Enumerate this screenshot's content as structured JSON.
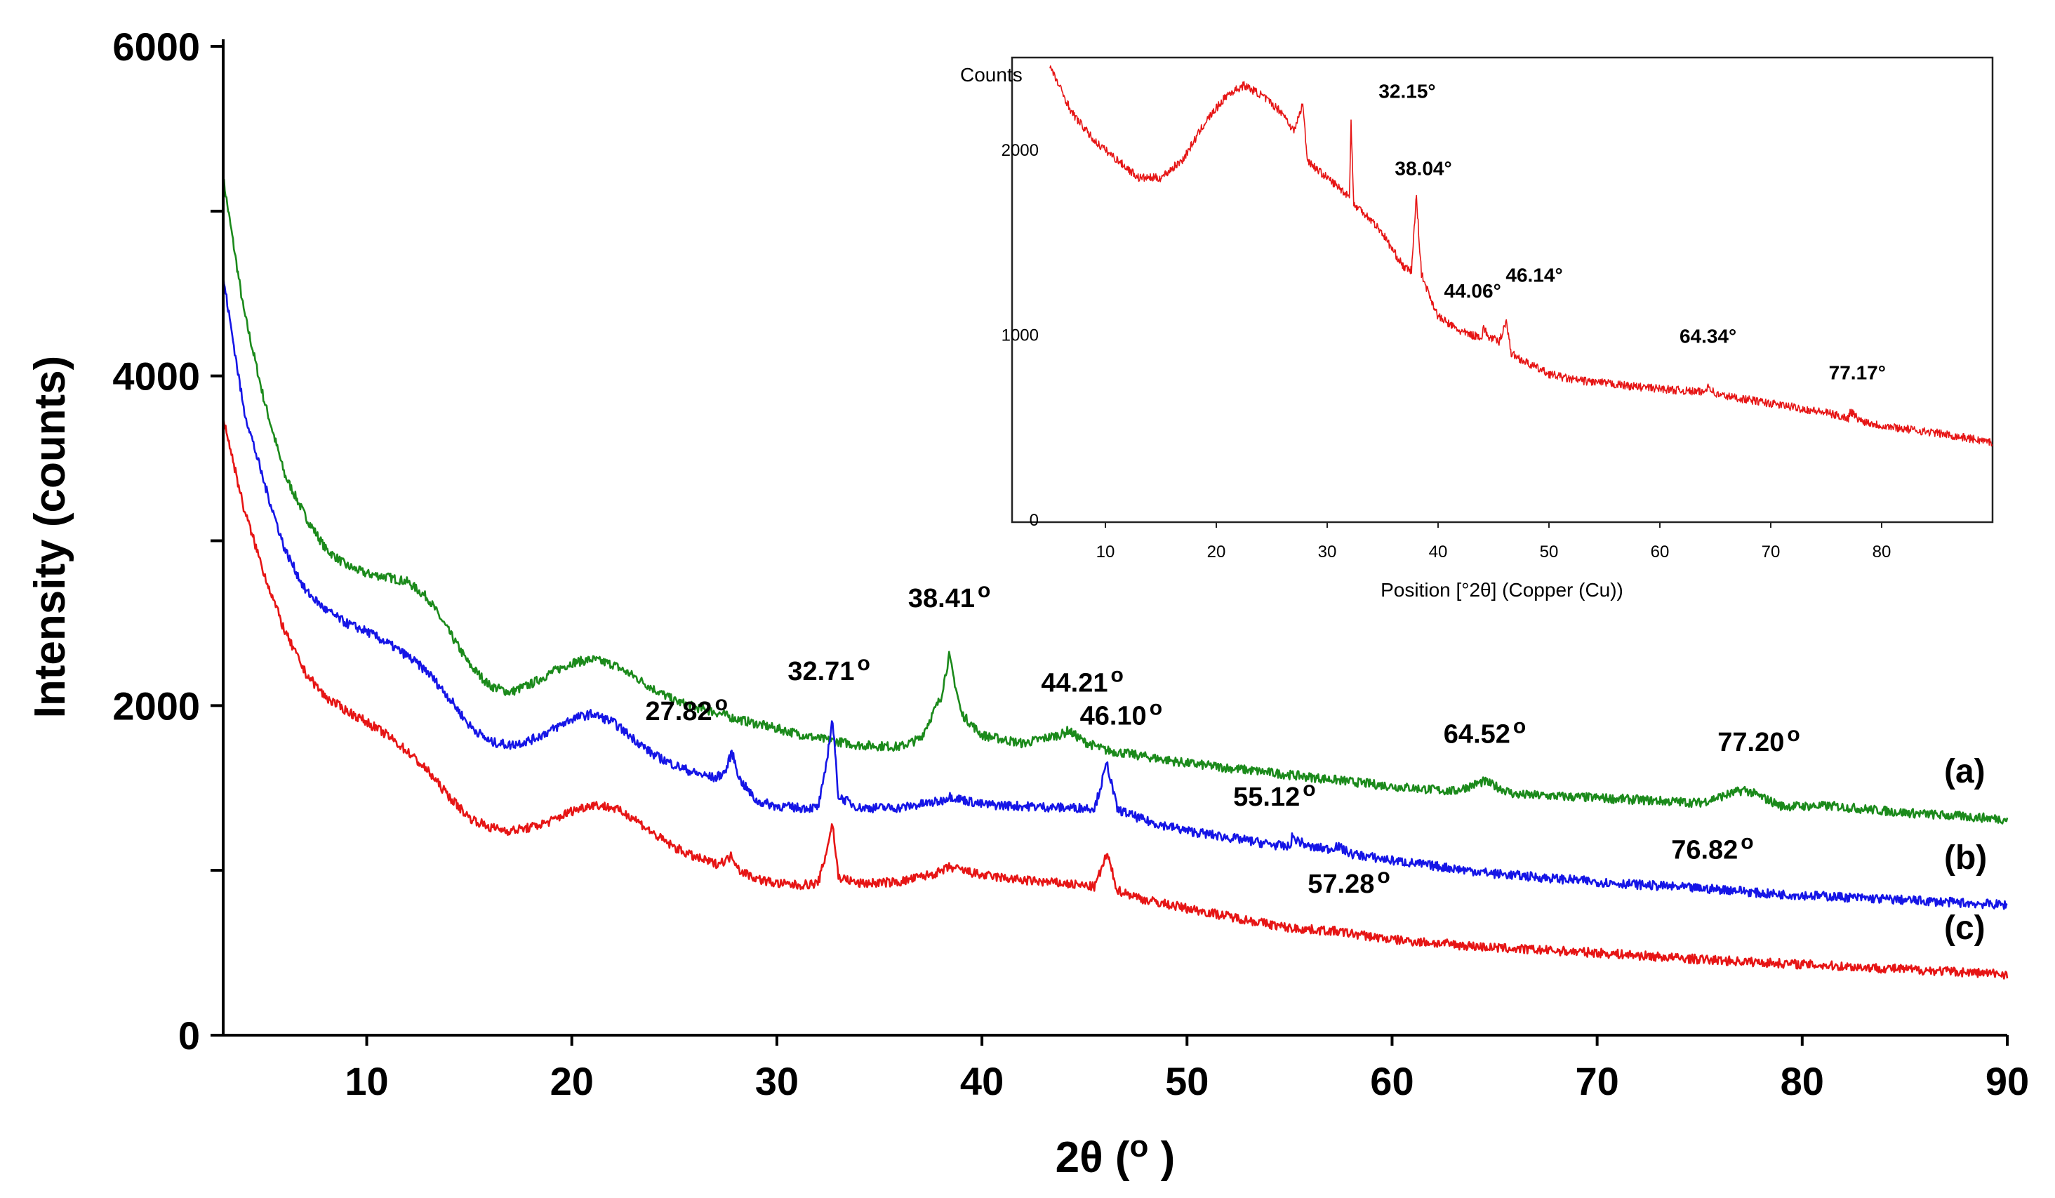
{
  "chart_data": [
    {
      "type": "line",
      "xlabel": "2θ (o)",
      "ylabel": "Intensity (counts)",
      "xlim": [
        3,
        90
      ],
      "ylim": [
        0,
        6000
      ],
      "x_ticks": [
        10,
        20,
        30,
        40,
        50,
        60,
        70,
        80,
        90
      ],
      "x_tick_labels": [
        "10",
        "20",
        "30",
        "40",
        "50",
        "60",
        "70",
        "80",
        "90"
      ],
      "y_ticks": [
        0,
        2000,
        4000,
        6000
      ],
      "y_tick_labels": [
        "0",
        "2000",
        "4000",
        "6000"
      ],
      "series": [
        {
          "name": "(a)",
          "color": "#1b8a1b",
          "x": [
            3,
            4,
            5,
            6,
            7,
            8,
            9,
            10,
            11,
            12,
            13,
            14,
            15,
            16,
            17,
            18,
            19,
            20,
            21,
            22,
            23,
            24,
            25,
            26,
            27,
            28,
            30,
            32,
            34,
            36,
            37,
            38,
            38.4,
            39,
            40,
            42,
            44,
            44.2,
            45,
            46,
            48,
            50,
            55,
            60,
            63,
            64.5,
            66,
            70,
            75,
            77.2,
            79,
            81.5,
            85,
            90
          ],
          "y": [
            5200,
            4400,
            3850,
            3400,
            3150,
            2950,
            2850,
            2800,
            2780,
            2750,
            2650,
            2450,
            2250,
            2120,
            2080,
            2130,
            2200,
            2260,
            2280,
            2250,
            2180,
            2100,
            2030,
            1990,
            1960,
            1920,
            1860,
            1800,
            1760,
            1750,
            1800,
            2050,
            2300,
            1950,
            1820,
            1770,
            1830,
            1850,
            1780,
            1730,
            1690,
            1650,
            1580,
            1510,
            1480,
            1540,
            1460,
            1440,
            1410,
            1490,
            1390,
            1390,
            1350,
            1310
          ]
        },
        {
          "name": "(b)",
          "color": "#1515e6",
          "x": [
            3,
            4,
            5,
            6,
            7,
            8,
            9,
            10,
            11,
            12,
            13,
            14,
            15,
            16,
            17,
            18,
            19,
            20,
            21,
            22,
            23,
            24,
            25,
            26,
            27,
            27.5,
            27.8,
            28.2,
            29,
            30,
            31,
            32,
            32.3,
            32.71,
            33,
            34,
            36,
            38,
            38.4,
            40,
            42,
            44,
            45.5,
            46.1,
            46.6,
            48,
            50,
            52,
            54,
            55,
            55.12,
            56,
            57,
            57.28,
            58,
            60,
            65,
            70,
            75,
            76.82,
            78,
            80,
            85,
            90
          ],
          "y": [
            4600,
            3800,
            3350,
            2950,
            2700,
            2580,
            2500,
            2450,
            2380,
            2300,
            2200,
            2050,
            1880,
            1780,
            1760,
            1790,
            1850,
            1920,
            1950,
            1900,
            1800,
            1700,
            1640,
            1590,
            1560,
            1600,
            1720,
            1550,
            1420,
            1390,
            1380,
            1380,
            1550,
            1920,
            1450,
            1380,
            1380,
            1420,
            1450,
            1400,
            1390,
            1380,
            1380,
            1650,
            1370,
            1300,
            1240,
            1200,
            1160,
            1140,
            1200,
            1140,
            1130,
            1150,
            1100,
            1060,
            980,
            930,
            890,
            880,
            860,
            850,
            820,
            790
          ]
        },
        {
          "name": "(c)",
          "color": "#e61515",
          "x": [
            3,
            4,
            5,
            6,
            7,
            8,
            9,
            10,
            11,
            12,
            13,
            14,
            15,
            16,
            17,
            18,
            19,
            20,
            21,
            22,
            23,
            24,
            25,
            26,
            27,
            27.5,
            27.82,
            28.2,
            29,
            30,
            31,
            32,
            32.3,
            32.71,
            33,
            34,
            36,
            38,
            38.4,
            40,
            42,
            44,
            45.5,
            46.1,
            46.6,
            48,
            50,
            55,
            57.28,
            60,
            65,
            70,
            75,
            80,
            85,
            90
          ],
          "y": [
            3750,
            3200,
            2800,
            2450,
            2200,
            2050,
            1970,
            1900,
            1820,
            1720,
            1600,
            1450,
            1320,
            1260,
            1240,
            1260,
            1300,
            1360,
            1400,
            1380,
            1320,
            1220,
            1140,
            1080,
            1040,
            1060,
            1090,
            1000,
            950,
            920,
            910,
            920,
            1050,
            1290,
            960,
            920,
            930,
            990,
            1020,
            970,
            940,
            920,
            900,
            1100,
            880,
            820,
            770,
            650,
            630,
            580,
            530,
            500,
            460,
            430,
            400,
            370
          ]
        }
      ],
      "annotations": [
        {
          "text": "27.82 o",
          "x": 27.82,
          "y": 1720
        },
        {
          "text": "32.71 o",
          "x": 32.71,
          "y": 1920
        },
        {
          "text": "38.41 o",
          "x": 38.41,
          "y": 2300
        },
        {
          "text": "44.21 o",
          "x": 44.21,
          "y": 1850
        },
        {
          "text": "46.10 o",
          "x": 46.1,
          "y": 1650
        },
        {
          "text": "55.12 o",
          "x": 55.12,
          "y": 1200
        },
        {
          "text": "57.28 o",
          "x": 57.28,
          "y": 630
        },
        {
          "text": "64.52 o",
          "x": 64.52,
          "y": 1540
        },
        {
          "text": "76.82 o",
          "x": 76.82,
          "y": 880
        },
        {
          "text": "77.20 o",
          "x": 77.2,
          "y": 1490
        }
      ]
    },
    {
      "type": "line",
      "title": "",
      "xlabel": "Position [°2θ] (Copper (Cu))",
      "ylabel": "Counts",
      "xlim": [
        5,
        90
      ],
      "ylim": [
        0,
        2500
      ],
      "x_ticks": [
        10,
        20,
        30,
        40,
        50,
        60,
        70,
        80
      ],
      "x_tick_labels": [
        "10",
        "20",
        "30",
        "40",
        "50",
        "60",
        "70",
        "80"
      ],
      "y_ticks": [
        0,
        1000,
        2000
      ],
      "y_tick_labels": [
        "0",
        "1000",
        "2000"
      ],
      "series": [
        {
          "name": "inset",
          "color": "#e61515",
          "x": [
            5,
            7,
            9,
            11,
            13,
            15,
            17,
            19,
            21,
            22.5,
            24,
            26,
            27,
            27.8,
            28.2,
            29,
            30,
            31,
            32,
            32.15,
            32.4,
            33,
            34,
            35,
            36,
            37,
            37.6,
            38.04,
            38.5,
            39,
            40,
            41,
            42,
            43,
            44,
            44.06,
            44.5,
            45,
            45.5,
            46.14,
            46.6,
            48,
            50,
            52,
            55,
            58,
            60,
            62,
            64,
            64.34,
            65,
            67,
            70,
            73,
            75,
            77,
            77.17,
            78,
            80,
            85,
            90
          ],
          "y": [
            2450,
            2200,
            2050,
            1950,
            1850,
            1850,
            1950,
            2150,
            2300,
            2350,
            2300,
            2200,
            2100,
            2250,
            1950,
            1900,
            1850,
            1800,
            1750,
            2150,
            1700,
            1680,
            1620,
            1550,
            1450,
            1360,
            1350,
            1750,
            1330,
            1250,
            1100,
            1060,
            1020,
            1000,
            990,
            1050,
            990,
            980,
            960,
            1080,
            900,
            850,
            790,
            760,
            740,
            720,
            710,
            700,
            690,
            730,
            680,
            660,
            630,
            600,
            580,
            550,
            590,
            540,
            510,
            470,
            420
          ]
        }
      ],
      "annotations": [
        {
          "text": "32.15°",
          "x": 32.15,
          "y": 2150
        },
        {
          "text": "38.04°",
          "x": 38.04,
          "y": 1750
        },
        {
          "text": "46.14°",
          "x": 46.14,
          "y": 1080
        },
        {
          "text": "44.06°",
          "x": 44.06,
          "y": 1050
        },
        {
          "text": "64.34°",
          "x": 64.34,
          "y": 730
        },
        {
          "text": "77.17°",
          "x": 77.17,
          "y": 590
        }
      ]
    }
  ]
}
